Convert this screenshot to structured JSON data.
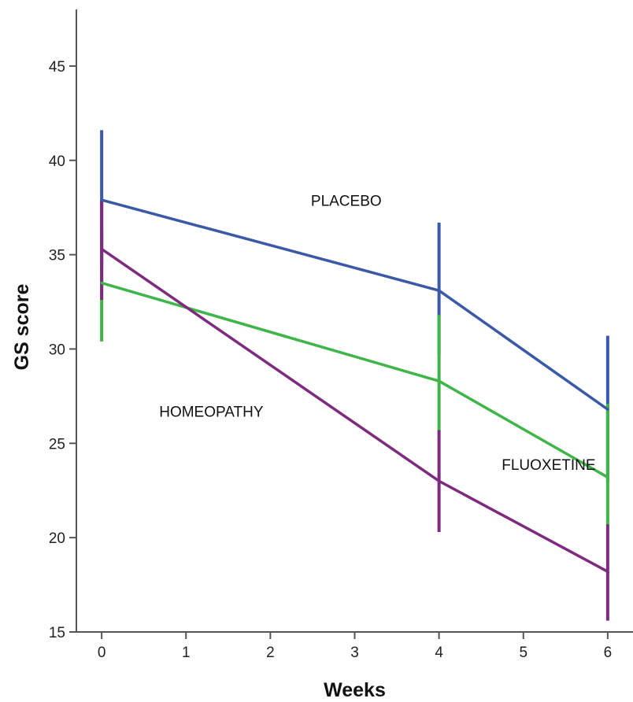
{
  "chart_data": {
    "type": "line",
    "xlabel": "Weeks",
    "ylabel": "GS score",
    "xlim": [
      -0.3,
      6.3
    ],
    "ylim": [
      15,
      48
    ],
    "xticks": [
      0,
      1,
      2,
      3,
      4,
      5,
      6
    ],
    "yticks": [
      15,
      20,
      25,
      30,
      35,
      40,
      45
    ],
    "grid": false,
    "legend": "none",
    "series": [
      {
        "name": "PLACEBO",
        "color": "#3a5aa8",
        "x": [
          0,
          4,
          6
        ],
        "y": [
          37.9,
          33.1,
          26.8
        ],
        "err_low": [
          34.4,
          29.7,
          22.9
        ],
        "err_high": [
          41.6,
          36.7,
          30.7
        ]
      },
      {
        "name": "FLUOXETINE",
        "color": "#3fb54a",
        "x": [
          0,
          4,
          6
        ],
        "y": [
          33.5,
          28.3,
          23.2
        ],
        "err_low": [
          30.4,
          25.7,
          20.6
        ],
        "err_high": [
          36.3,
          31.8,
          27.1
        ]
      },
      {
        "name": "HOMEOPATHY",
        "color": "#7d2a7f",
        "x": [
          0,
          4,
          6
        ],
        "y": [
          35.3,
          23.0,
          18.2
        ],
        "err_low": [
          32.6,
          20.3,
          15.6
        ],
        "err_high": [
          37.9,
          25.7,
          20.7
        ]
      }
    ],
    "annotations": [
      {
        "text": "PLACEBO",
        "x": 2.9,
        "y": 37.6
      },
      {
        "text": "HOMEOPATHY",
        "x": 1.3,
        "y": 26.4
      },
      {
        "text": "FLUOXETINE",
        "x": 5.3,
        "y": 23.6
      }
    ]
  }
}
